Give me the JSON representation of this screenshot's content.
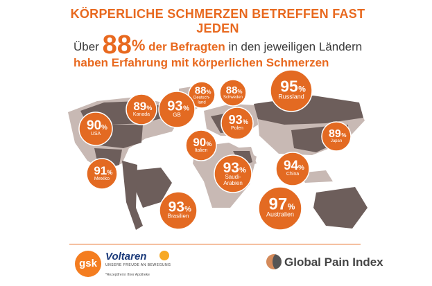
{
  "title": "KÖRPERLICHE SCHMERZEN BETREFFEN FAST JEDEN",
  "subtitle": {
    "prefix": "Über",
    "big_number": "88",
    "percent_sign": "%",
    "line1_bold": "der Befragten",
    "line1_rest": "in den jeweiligen Ländern",
    "line2": "haben Erfahrung mit körperlichen Schmerzen"
  },
  "chart_data": {
    "type": "bubble-map",
    "unit": "%",
    "series": [
      {
        "country": "Kanada",
        "value": 89
      },
      {
        "country": "Deutsch-land",
        "value": 88
      },
      {
        "country": "Schweden",
        "value": 88
      },
      {
        "country": "Russland",
        "value": 95
      },
      {
        "country": "GB",
        "value": 93
      },
      {
        "country": "USA",
        "value": 90
      },
      {
        "country": "Polen",
        "value": 93
      },
      {
        "country": "Japan",
        "value": 89
      },
      {
        "country": "Italien",
        "value": 90
      },
      {
        "country": "Mexiko",
        "value": 91
      },
      {
        "country": "Saudi-Arabien",
        "value": 93
      },
      {
        "country": "China",
        "value": 94
      },
      {
        "country": "Brasilien",
        "value": 93
      },
      {
        "country": "Australien",
        "value": 97
      }
    ]
  },
  "colors": {
    "accent": "#e8691f",
    "bubble": "#e36a22",
    "map_light": "#c8b9b4",
    "map_dark": "#6d5e5b"
  },
  "footer": {
    "gsk": "gsk",
    "voltaren": "Voltaren",
    "voltaren_tagline": "UNSERE FREUDE AN BEWEGUNG",
    "voltaren_note": "*Rezeptfrei in Ihrer Apotheke",
    "gpi": "Global Pain Index"
  }
}
